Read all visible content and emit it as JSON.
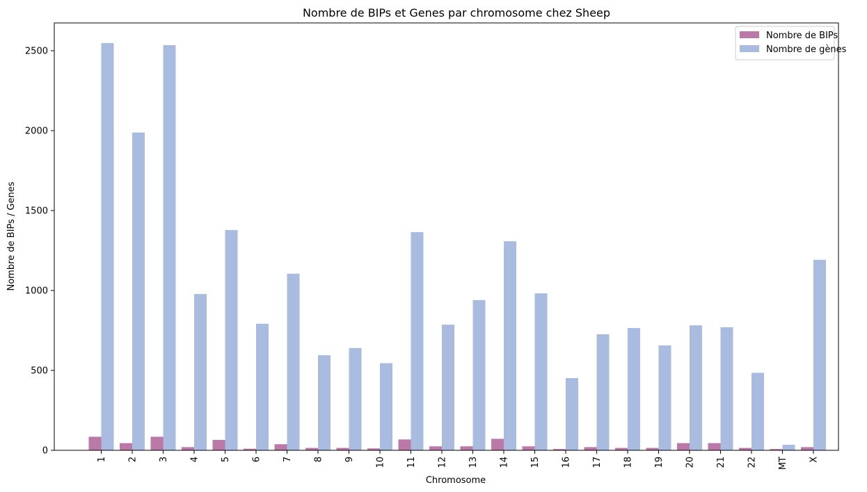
{
  "chart_data": {
    "type": "bar",
    "title": "Nombre de BIPs et Genes par chromosome chez Sheep",
    "xlabel": "Chromosome",
    "ylabel": "Nombre de BIPs / Genes",
    "categories": [
      "1",
      "2",
      "3",
      "4",
      "5",
      "6",
      "7",
      "8",
      "9",
      "10",
      "11",
      "12",
      "13",
      "14",
      "15",
      "16",
      "17",
      "18",
      "19",
      "20",
      "21",
      "22",
      "MT",
      "X"
    ],
    "series": [
      {
        "name": "Nombre de BIPs",
        "color": "#bb79a8",
        "values": [
          85,
          45,
          85,
          20,
          65,
          10,
          38,
          15,
          15,
          12,
          68,
          25,
          25,
          72,
          25,
          8,
          20,
          15,
          15,
          45,
          45,
          15,
          8,
          20
        ]
      },
      {
        "name": "Nombre de gènes",
        "color": "#aabbe0",
        "values": [
          2548,
          1988,
          2535,
          978,
          1378,
          792,
          1105,
          595,
          640,
          545,
          1365,
          786,
          940,
          1308,
          982,
          452,
          726,
          765,
          656,
          782,
          770,
          485,
          35,
          1192
        ]
      }
    ],
    "yticks": [
      0,
      500,
      1000,
      1500,
      2000,
      2500
    ],
    "ylim": [
      0,
      2680
    ],
    "grid": false,
    "legend_position": "top-right"
  }
}
